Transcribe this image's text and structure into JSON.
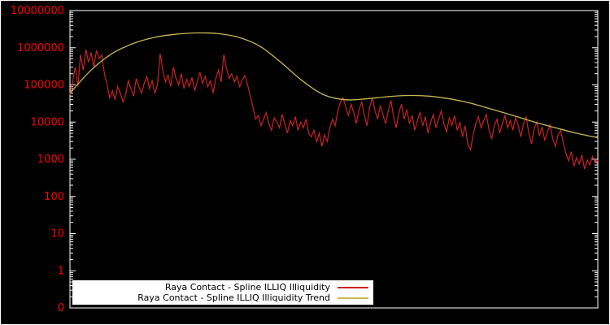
{
  "chart": {
    "background": "#000000",
    "frame_color": "#ffffff",
    "tick_label_color": "#ff0000",
    "legend_background": "#ffffff",
    "legend_text_color": "#000000"
  },
  "chart_data": {
    "type": "line",
    "title": "",
    "xlabel": "",
    "ylabel": "",
    "y_scale": "log",
    "grid": false,
    "legend_position": "bottom-center-inside",
    "y_tick_labels": [
      "10000000",
      "1000000",
      "100000",
      "10000",
      "1000",
      "100",
      "10",
      "1",
      "0"
    ],
    "ylim_log10": [
      -1,
      7
    ],
    "series": [
      {
        "name": "Raya Contact - Spline ILLIQ Illiquidity",
        "color": "#cc2222",
        "values": [
          55000,
          120000,
          300000,
          90000,
          650000,
          250000,
          900000,
          400000,
          750000,
          300000,
          850000,
          500000,
          650000,
          200000,
          100000,
          45000,
          70000,
          40000,
          90000,
          60000,
          35000,
          55000,
          130000,
          80000,
          50000,
          150000,
          90000,
          60000,
          110000,
          170000,
          80000,
          130000,
          60000,
          100000,
          700000,
          250000,
          120000,
          180000,
          90000,
          300000,
          150000,
          100000,
          200000,
          80000,
          140000,
          90000,
          160000,
          70000,
          120000,
          220000,
          110000,
          170000,
          90000,
          130000,
          60000,
          150000,
          250000,
          120000,
          650000,
          280000,
          150000,
          200000,
          120000,
          170000,
          90000,
          140000,
          180000,
          100000,
          50000,
          25000,
          12000,
          15000,
          8000,
          12000,
          18000,
          9000,
          6000,
          13000,
          10000,
          7000,
          16000,
          9000,
          5000,
          11000,
          8000,
          14000,
          6000,
          10000,
          7000,
          12000,
          5000,
          4000,
          6000,
          3000,
          5000,
          2200,
          4500,
          3000,
          7000,
          12000,
          8000,
          20000,
          35000,
          45000,
          25000,
          15000,
          30000,
          18000,
          9000,
          22000,
          35000,
          15000,
          8000,
          25000,
          45000,
          20000,
          12000,
          28000,
          16000,
          9000,
          20000,
          38000,
          14000,
          7000,
          18000,
          30000,
          12000,
          22000,
          9000,
          15000,
          6000,
          11000,
          18000,
          8000,
          14000,
          5000,
          10000,
          16000,
          7000,
          12000,
          20000,
          9000,
          5500,
          13000,
          8000,
          15000,
          6000,
          10000,
          4000,
          8000,
          2500,
          1800,
          4500,
          9000,
          14000,
          7000,
          11000,
          16000,
          6000,
          3500,
          8000,
          12000,
          5000,
          9000,
          15000,
          7000,
          11000,
          6000,
          13000,
          8000,
          4000,
          9000,
          14000,
          5000,
          2600,
          6500,
          10000,
          4200,
          7500,
          3200,
          5500,
          8500,
          3600,
          2200,
          4500,
          6000,
          2800,
          1400,
          900,
          1600,
          650,
          1100,
          750,
          1300,
          550,
          950,
          700,
          1200,
          800,
          950
        ]
      },
      {
        "name": "Raya Contact - Spline ILLIQ Illiquidity Trend",
        "color": "#c8b654",
        "points": [
          [
            0.0,
            60000
          ],
          [
            0.04,
            250000
          ],
          [
            0.08,
            700000
          ],
          [
            0.12,
            1300000
          ],
          [
            0.16,
            1900000
          ],
          [
            0.2,
            2300000
          ],
          [
            0.24,
            2500000
          ],
          [
            0.28,
            2400000
          ],
          [
            0.32,
            1900000
          ],
          [
            0.36,
            1100000
          ],
          [
            0.4,
            400000
          ],
          [
            0.44,
            130000
          ],
          [
            0.48,
            55000
          ],
          [
            0.52,
            40000
          ],
          [
            0.56,
            42000
          ],
          [
            0.6,
            48000
          ],
          [
            0.64,
            52000
          ],
          [
            0.68,
            50000
          ],
          [
            0.72,
            42000
          ],
          [
            0.76,
            32000
          ],
          [
            0.8,
            22000
          ],
          [
            0.84,
            15000
          ],
          [
            0.88,
            10000
          ],
          [
            0.92,
            7000
          ],
          [
            0.96,
            5000
          ],
          [
            1.0,
            3800
          ]
        ]
      }
    ]
  }
}
